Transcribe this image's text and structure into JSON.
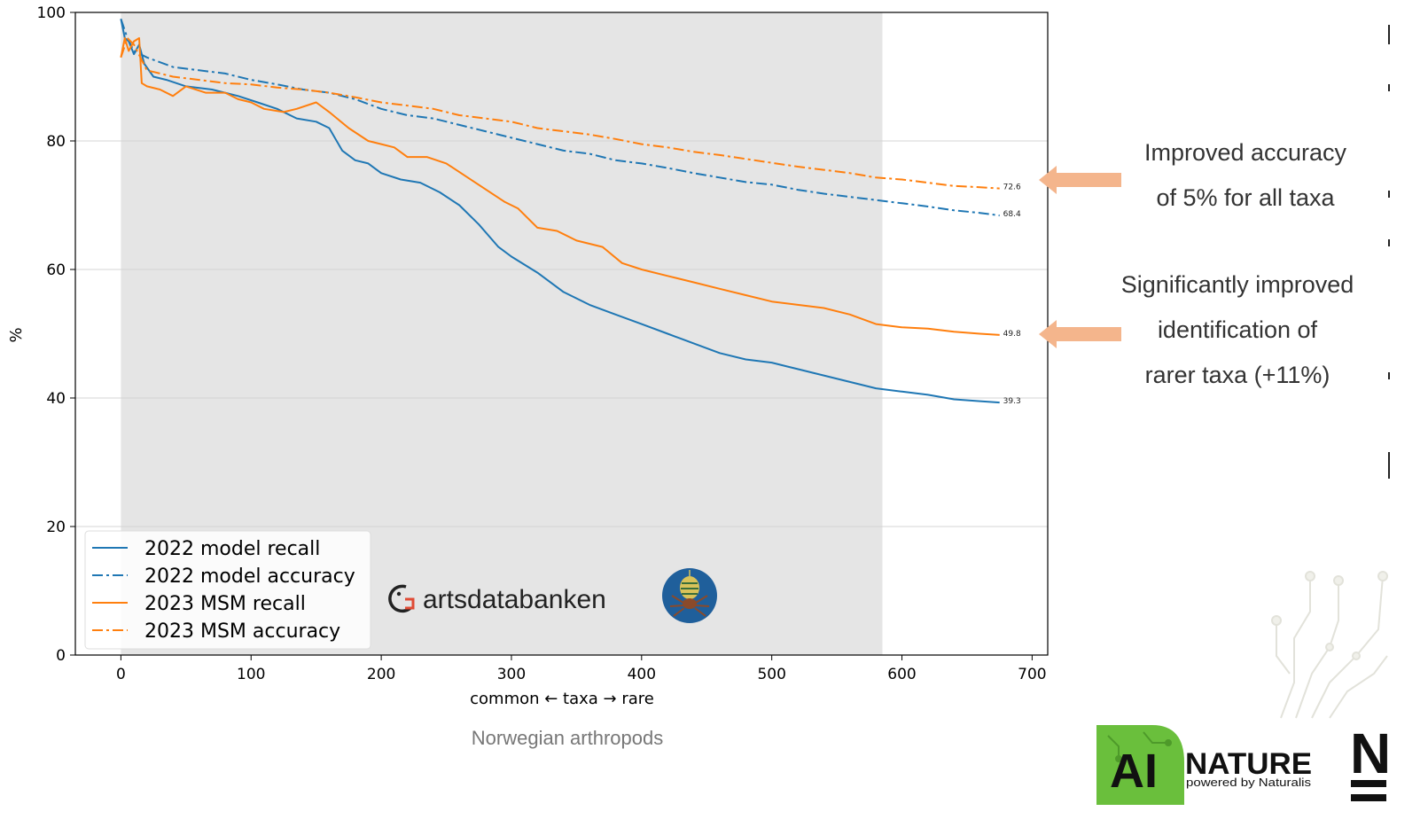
{
  "chart_data": {
    "type": "line",
    "title": "",
    "xlabel": "common ← taxa → rare",
    "ylabel": "%",
    "xlim": [
      -35,
      712
    ],
    "ylim": [
      0,
      100
    ],
    "xticks": [
      0,
      100,
      200,
      300,
      400,
      500,
      600,
      700
    ],
    "yticks": [
      0,
      20,
      40,
      60,
      80,
      100
    ],
    "grid": "horizontal",
    "legend_position": "lower-left",
    "shaded_region": [
      0,
      585
    ],
    "series": [
      {
        "name": "2022 model recall",
        "color": "#1f77b4",
        "style": "solid",
        "end_label": "39.3",
        "points": [
          [
            0,
            99
          ],
          [
            3,
            96
          ],
          [
            6,
            95.5
          ],
          [
            10,
            93.5
          ],
          [
            14,
            95
          ],
          [
            18,
            92
          ],
          [
            25,
            90
          ],
          [
            35,
            89.5
          ],
          [
            50,
            88.5
          ],
          [
            70,
            88
          ],
          [
            90,
            87
          ],
          [
            105,
            86
          ],
          [
            120,
            85
          ],
          [
            135,
            83.5
          ],
          [
            150,
            83
          ],
          [
            160,
            82
          ],
          [
            170,
            78.5
          ],
          [
            180,
            77
          ],
          [
            190,
            76.5
          ],
          [
            200,
            75
          ],
          [
            215,
            74
          ],
          [
            230,
            73.5
          ],
          [
            245,
            72
          ],
          [
            260,
            70
          ],
          [
            275,
            67
          ],
          [
            290,
            63.5
          ],
          [
            300,
            62
          ],
          [
            320,
            59.5
          ],
          [
            340,
            56.5
          ],
          [
            360,
            54.5
          ],
          [
            380,
            53
          ],
          [
            400,
            51.5
          ],
          [
            420,
            50
          ],
          [
            440,
            48.5
          ],
          [
            460,
            47
          ],
          [
            480,
            46
          ],
          [
            500,
            45.5
          ],
          [
            520,
            44.5
          ],
          [
            540,
            43.5
          ],
          [
            560,
            42.5
          ],
          [
            580,
            41.5
          ],
          [
            600,
            41
          ],
          [
            620,
            40.5
          ],
          [
            640,
            39.8
          ],
          [
            660,
            39.5
          ],
          [
            675,
            39.3
          ]
        ]
      },
      {
        "name": "2022 model accuracy",
        "color": "#1f77b4",
        "style": "dashdot",
        "end_label": "68.4",
        "points": [
          [
            0,
            99
          ],
          [
            5,
            96
          ],
          [
            10,
            94
          ],
          [
            20,
            93
          ],
          [
            40,
            91.5
          ],
          [
            60,
            91
          ],
          [
            80,
            90.5
          ],
          [
            100,
            89.5
          ],
          [
            120,
            88.8
          ],
          [
            140,
            88
          ],
          [
            160,
            87.5
          ],
          [
            180,
            86.5
          ],
          [
            200,
            85
          ],
          [
            220,
            84
          ],
          [
            240,
            83.5
          ],
          [
            260,
            82.5
          ],
          [
            280,
            81.5
          ],
          [
            300,
            80.5
          ],
          [
            320,
            79.5
          ],
          [
            340,
            78.5
          ],
          [
            360,
            78
          ],
          [
            380,
            77
          ],
          [
            400,
            76.5
          ],
          [
            420,
            75.8
          ],
          [
            440,
            75
          ],
          [
            460,
            74.3
          ],
          [
            480,
            73.6
          ],
          [
            500,
            73.2
          ],
          [
            520,
            72.4
          ],
          [
            540,
            71.8
          ],
          [
            560,
            71.3
          ],
          [
            580,
            70.8
          ],
          [
            600,
            70.3
          ],
          [
            620,
            69.8
          ],
          [
            640,
            69.2
          ],
          [
            660,
            68.8
          ],
          [
            675,
            68.4
          ]
        ]
      },
      {
        "name": "2023 MSM recall",
        "color": "#ff7f0e",
        "style": "solid",
        "end_label": "49.8",
        "points": [
          [
            0,
            93
          ],
          [
            3,
            96
          ],
          [
            6,
            94
          ],
          [
            10,
            95.5
          ],
          [
            14,
            96
          ],
          [
            16,
            89
          ],
          [
            20,
            88.5
          ],
          [
            30,
            88
          ],
          [
            40,
            87
          ],
          [
            50,
            88.5
          ],
          [
            65,
            87.5
          ],
          [
            80,
            87.5
          ],
          [
            90,
            86.5
          ],
          [
            100,
            86
          ],
          [
            110,
            85
          ],
          [
            125,
            84.5
          ],
          [
            135,
            85
          ],
          [
            150,
            86
          ],
          [
            160,
            84.5
          ],
          [
            175,
            82
          ],
          [
            190,
            80
          ],
          [
            200,
            79.5
          ],
          [
            210,
            79
          ],
          [
            220,
            77.5
          ],
          [
            235,
            77.5
          ],
          [
            250,
            76.5
          ],
          [
            265,
            74.5
          ],
          [
            280,
            72.5
          ],
          [
            295,
            70.5
          ],
          [
            305,
            69.5
          ],
          [
            320,
            66.5
          ],
          [
            335,
            66
          ],
          [
            350,
            64.5
          ],
          [
            370,
            63.5
          ],
          [
            385,
            61
          ],
          [
            400,
            60
          ],
          [
            420,
            59
          ],
          [
            440,
            58
          ],
          [
            460,
            57
          ],
          [
            480,
            56
          ],
          [
            500,
            55
          ],
          [
            520,
            54.5
          ],
          [
            540,
            54
          ],
          [
            560,
            53
          ],
          [
            580,
            51.5
          ],
          [
            600,
            51
          ],
          [
            620,
            50.8
          ],
          [
            640,
            50.3
          ],
          [
            660,
            50
          ],
          [
            675,
            49.8
          ]
        ]
      },
      {
        "name": "2023 MSM accuracy",
        "color": "#ff7f0e",
        "style": "dashdot",
        "end_label": "72.6",
        "points": [
          [
            0,
            93
          ],
          [
            5,
            96
          ],
          [
            10,
            95
          ],
          [
            20,
            91
          ],
          [
            40,
            90
          ],
          [
            60,
            89.5
          ],
          [
            80,
            89
          ],
          [
            100,
            88.8
          ],
          [
            120,
            88.3
          ],
          [
            140,
            88
          ],
          [
            160,
            87.5
          ],
          [
            180,
            86.8
          ],
          [
            200,
            86
          ],
          [
            220,
            85.5
          ],
          [
            240,
            85
          ],
          [
            260,
            84
          ],
          [
            280,
            83.5
          ],
          [
            300,
            83
          ],
          [
            320,
            82
          ],
          [
            340,
            81.5
          ],
          [
            360,
            81
          ],
          [
            380,
            80.3
          ],
          [
            400,
            79.5
          ],
          [
            420,
            79
          ],
          [
            440,
            78.3
          ],
          [
            460,
            77.8
          ],
          [
            480,
            77.2
          ],
          [
            500,
            76.6
          ],
          [
            520,
            76
          ],
          [
            540,
            75.5
          ],
          [
            560,
            75
          ],
          [
            580,
            74.3
          ],
          [
            600,
            74
          ],
          [
            620,
            73.5
          ],
          [
            640,
            73
          ],
          [
            660,
            72.8
          ],
          [
            675,
            72.6
          ]
        ]
      }
    ]
  },
  "annotations": {
    "top_line1": "Improved accuracy",
    "top_line2": "of 5% for all taxa",
    "bottom_line1": "Significantly improved",
    "bottom_line2": "identification of",
    "bottom_line3": "rarer taxa (+11%)"
  },
  "subtitle": "Norwegian arthropods",
  "logos": {
    "artsdatabanken": "artsdatabanken",
    "ai_text": "AI",
    "nature_text": "NATURE",
    "powered_by": "powered by Naturalis",
    "partial_brand": "N"
  },
  "colors": {
    "blue": "#1f77b4",
    "orange": "#ff7f0e",
    "shade": "#e5e5e5",
    "arrow": "#f4b58c",
    "ai_green": "#6abf3c"
  }
}
